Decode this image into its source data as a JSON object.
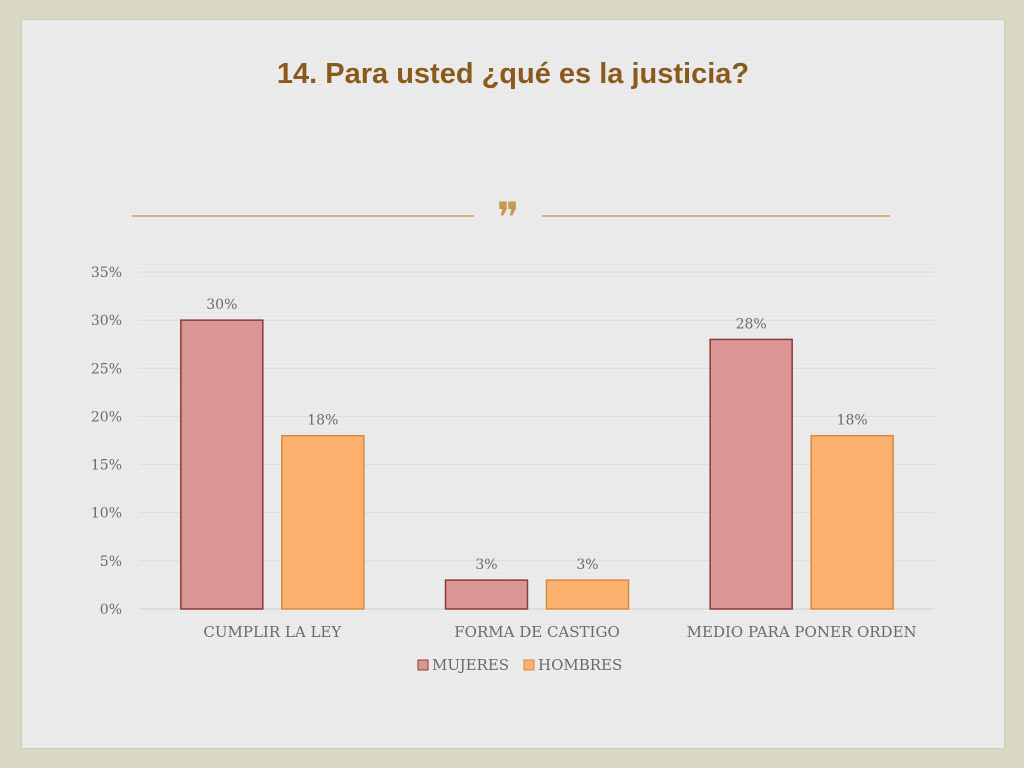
{
  "slide": {
    "title": "14. Para usted ¿qué es la justicia?"
  },
  "ornament": {
    "icon": "flourish-ornament-icon",
    "glyph": "❞",
    "color": "#c49a52"
  },
  "chart_data": {
    "type": "bar",
    "categories": [
      "CUMPLIR LA LEY",
      "FORMA DE CASTIGO",
      "MEDIO PARA PONER ORDEN"
    ],
    "series": [
      {
        "name": "MUJERES",
        "values": [
          30,
          3,
          28
        ],
        "labels": [
          "30%",
          "3%",
          "28%"
        ],
        "color": "#d99694",
        "stroke": "#8b3a36"
      },
      {
        "name": "HOMBRES",
        "values": [
          18,
          3,
          18
        ],
        "labels": [
          "18%",
          "3%",
          "18%"
        ],
        "color": "#fdb16f",
        "stroke": "#d38b3e"
      }
    ],
    "ylim": [
      0,
      35
    ],
    "yticks": [
      0,
      5,
      10,
      15,
      20,
      25,
      30,
      35
    ],
    "ytick_labels": [
      "0%",
      "5%",
      "10%",
      "15%",
      "20%",
      "25%",
      "30%",
      "35%"
    ],
    "grid": true,
    "legend_position": "bottom"
  }
}
